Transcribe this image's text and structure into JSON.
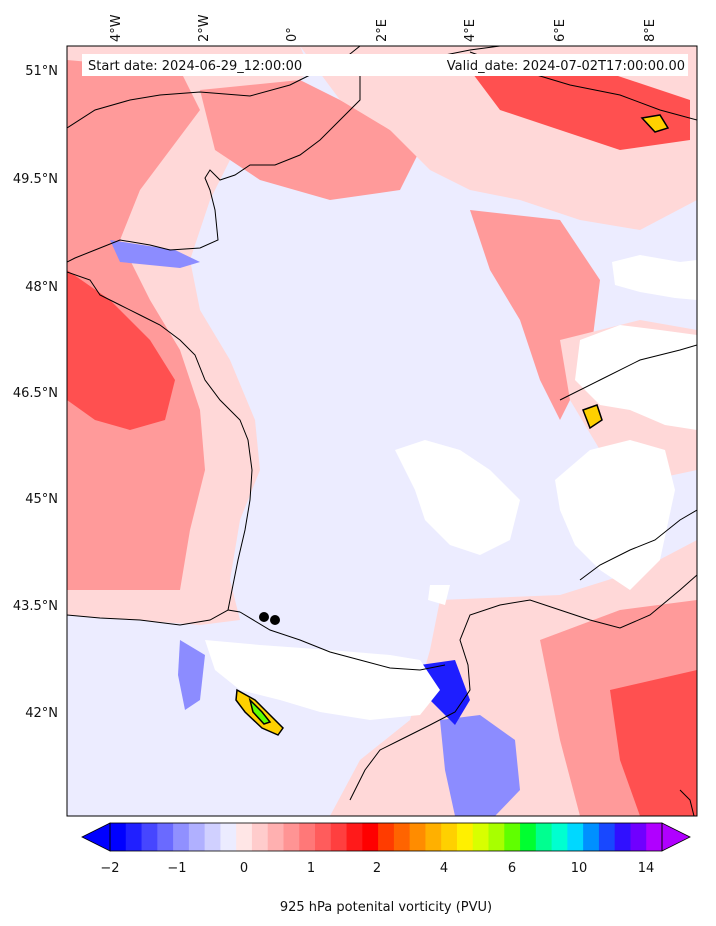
{
  "header": {
    "start_date": "Start date: 2024-06-29_12:00:00",
    "valid_date": "Valid_date: 2024-07-02T17:00:00.00"
  },
  "axes": {
    "lon_labels": [
      "4°W",
      "2°W",
      "0°",
      "2°E",
      "4°E",
      "6°E",
      "8°E"
    ],
    "lat_labels": [
      "51°N",
      "49.5°N",
      "48°N",
      "46.5°N",
      "45°N",
      "43.5°N",
      "42°N"
    ]
  },
  "colorbar": {
    "label": "925 hPa potenital vorticity (PVU)",
    "tick_labels": [
      "−2",
      "−1",
      "0",
      "1",
      "2",
      "4",
      "6",
      "10",
      "14"
    ],
    "colors": [
      "#0000ff",
      "#2020ff",
      "#4646ff",
      "#6a6aff",
      "#9090ff",
      "#b0b0ff",
      "#d0d0ff",
      "#ececff",
      "#ffe6e6",
      "#ffcccc",
      "#ffb0b0",
      "#ff9494",
      "#ff7878",
      "#ff5c5c",
      "#ff3f3f",
      "#ff1a1a",
      "#ff0000",
      "#ff3c00",
      "#ff6400",
      "#ff8c00",
      "#ffb000",
      "#ffd000",
      "#fff000",
      "#d8ff00",
      "#a8ff00",
      "#60ff00",
      "#00ff30",
      "#00ff90",
      "#00ffd0",
      "#00d8ff",
      "#0090ff",
      "#1848ff",
      "#3010ff",
      "#7000ff",
      "#b000ff"
    ]
  },
  "map_colors": {
    "neutral": "#ececff",
    "weak_positive": "#ffd8d8",
    "moderate_positive": "#ff9a9a",
    "strong_positive": "#ff5050",
    "negative": "#8c8cff",
    "strong_negative": "#1e1eff",
    "missing": "#ffffff",
    "coastline": "#000000"
  },
  "markers": [
    {
      "name": "marker-1"
    },
    {
      "name": "marker-2"
    }
  ]
}
